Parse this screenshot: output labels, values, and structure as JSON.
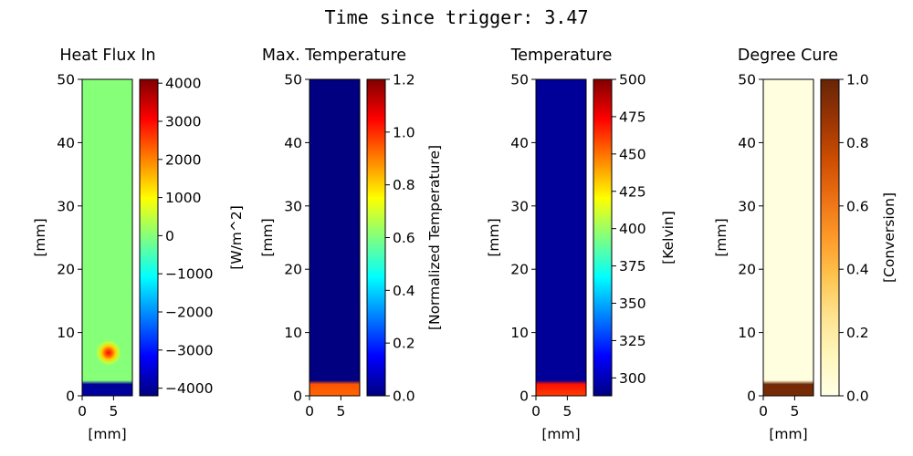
{
  "suptitle": "Time since trigger: 3.47",
  "chart_data": [
    {
      "type": "heatmap",
      "title": "Heat Flux In",
      "xlabel": "[mm]",
      "ylabel": "[mm]",
      "xlim": [
        0,
        8
      ],
      "ylim": [
        0,
        50
      ],
      "x_ticks": [
        0,
        5
      ],
      "y_ticks": [
        0,
        10,
        20,
        30,
        40,
        50
      ],
      "colormap": "jet",
      "colorbar_label": "[W/m^2]",
      "colorbar_range": [
        -4200,
        4100
      ],
      "colorbar_ticks": [
        "4000",
        "3000",
        "2000",
        "1000",
        "0",
        "−1000",
        "−2000",
        "−3000",
        "−4000"
      ],
      "colorbar_tick_values": [
        4000,
        3000,
        2000,
        1000,
        0,
        -1000,
        -2000,
        -3000,
        -4000
      ],
      "field": {
        "background": 0,
        "front_y_mm": 2.0,
        "below_front_value": -4000,
        "hotspot": {
          "x_mm": 4.2,
          "y_mm": 6.8,
          "peak": 3000
        }
      }
    },
    {
      "type": "heatmap",
      "title": "Max. Temperature",
      "xlabel": "",
      "ylabel": "[mm]",
      "xlim": [
        0,
        8
      ],
      "ylim": [
        0,
        50
      ],
      "x_ticks": [
        0,
        5
      ],
      "y_ticks": [
        0,
        10,
        20,
        30,
        40,
        50
      ],
      "colormap": "jet",
      "colorbar_label": "[Normalized Temperature]",
      "colorbar_range": [
        0,
        1.2
      ],
      "colorbar_ticks": [
        "1.2",
        "1.0",
        "0.8",
        "0.6",
        "0.4",
        "0.2",
        "0.0"
      ],
      "colorbar_tick_values": [
        1.2,
        1.0,
        0.8,
        0.6,
        0.4,
        0.2,
        0.0
      ],
      "field": {
        "background": 0.0,
        "front_y_mm": 2.0,
        "below_front_value": 0.95
      }
    },
    {
      "type": "heatmap",
      "title": "Temperature",
      "xlabel": "[mm]",
      "ylabel": "[mm]",
      "xlim": [
        0,
        8
      ],
      "ylim": [
        0,
        50
      ],
      "x_ticks": [
        0,
        5
      ],
      "y_ticks": [
        0,
        10,
        20,
        30,
        40,
        50
      ],
      "colormap": "jet",
      "colorbar_label": "[Kelvin]",
      "colorbar_range": [
        288,
        500
      ],
      "colorbar_ticks": [
        "500",
        "475",
        "450",
        "425",
        "400",
        "375",
        "350",
        "325",
        "300"
      ],
      "colorbar_tick_values": [
        500,
        475,
        450,
        425,
        400,
        375,
        350,
        325,
        300
      ],
      "field": {
        "background": 293,
        "front_y_mm": 2.0,
        "below_front_value": 470
      }
    },
    {
      "type": "heatmap",
      "title": "Degree Cure",
      "xlabel": "[mm]",
      "ylabel": "[mm]",
      "xlim": [
        0,
        8
      ],
      "ylim": [
        0,
        50
      ],
      "x_ticks": [
        0,
        5
      ],
      "y_ticks": [
        0,
        10,
        20,
        30,
        40,
        50
      ],
      "colormap": "YlOrBr",
      "colorbar_label": "[Conversion]",
      "colorbar_range": [
        0,
        1
      ],
      "colorbar_ticks": [
        "1.0",
        "0.8",
        "0.6",
        "0.4",
        "0.2",
        "0.0"
      ],
      "colorbar_tick_values": [
        1.0,
        0.8,
        0.6,
        0.4,
        0.2,
        0.0
      ],
      "field": {
        "background": 0.02,
        "front_y_mm": 2.0,
        "below_front_value": 0.97
      }
    }
  ]
}
